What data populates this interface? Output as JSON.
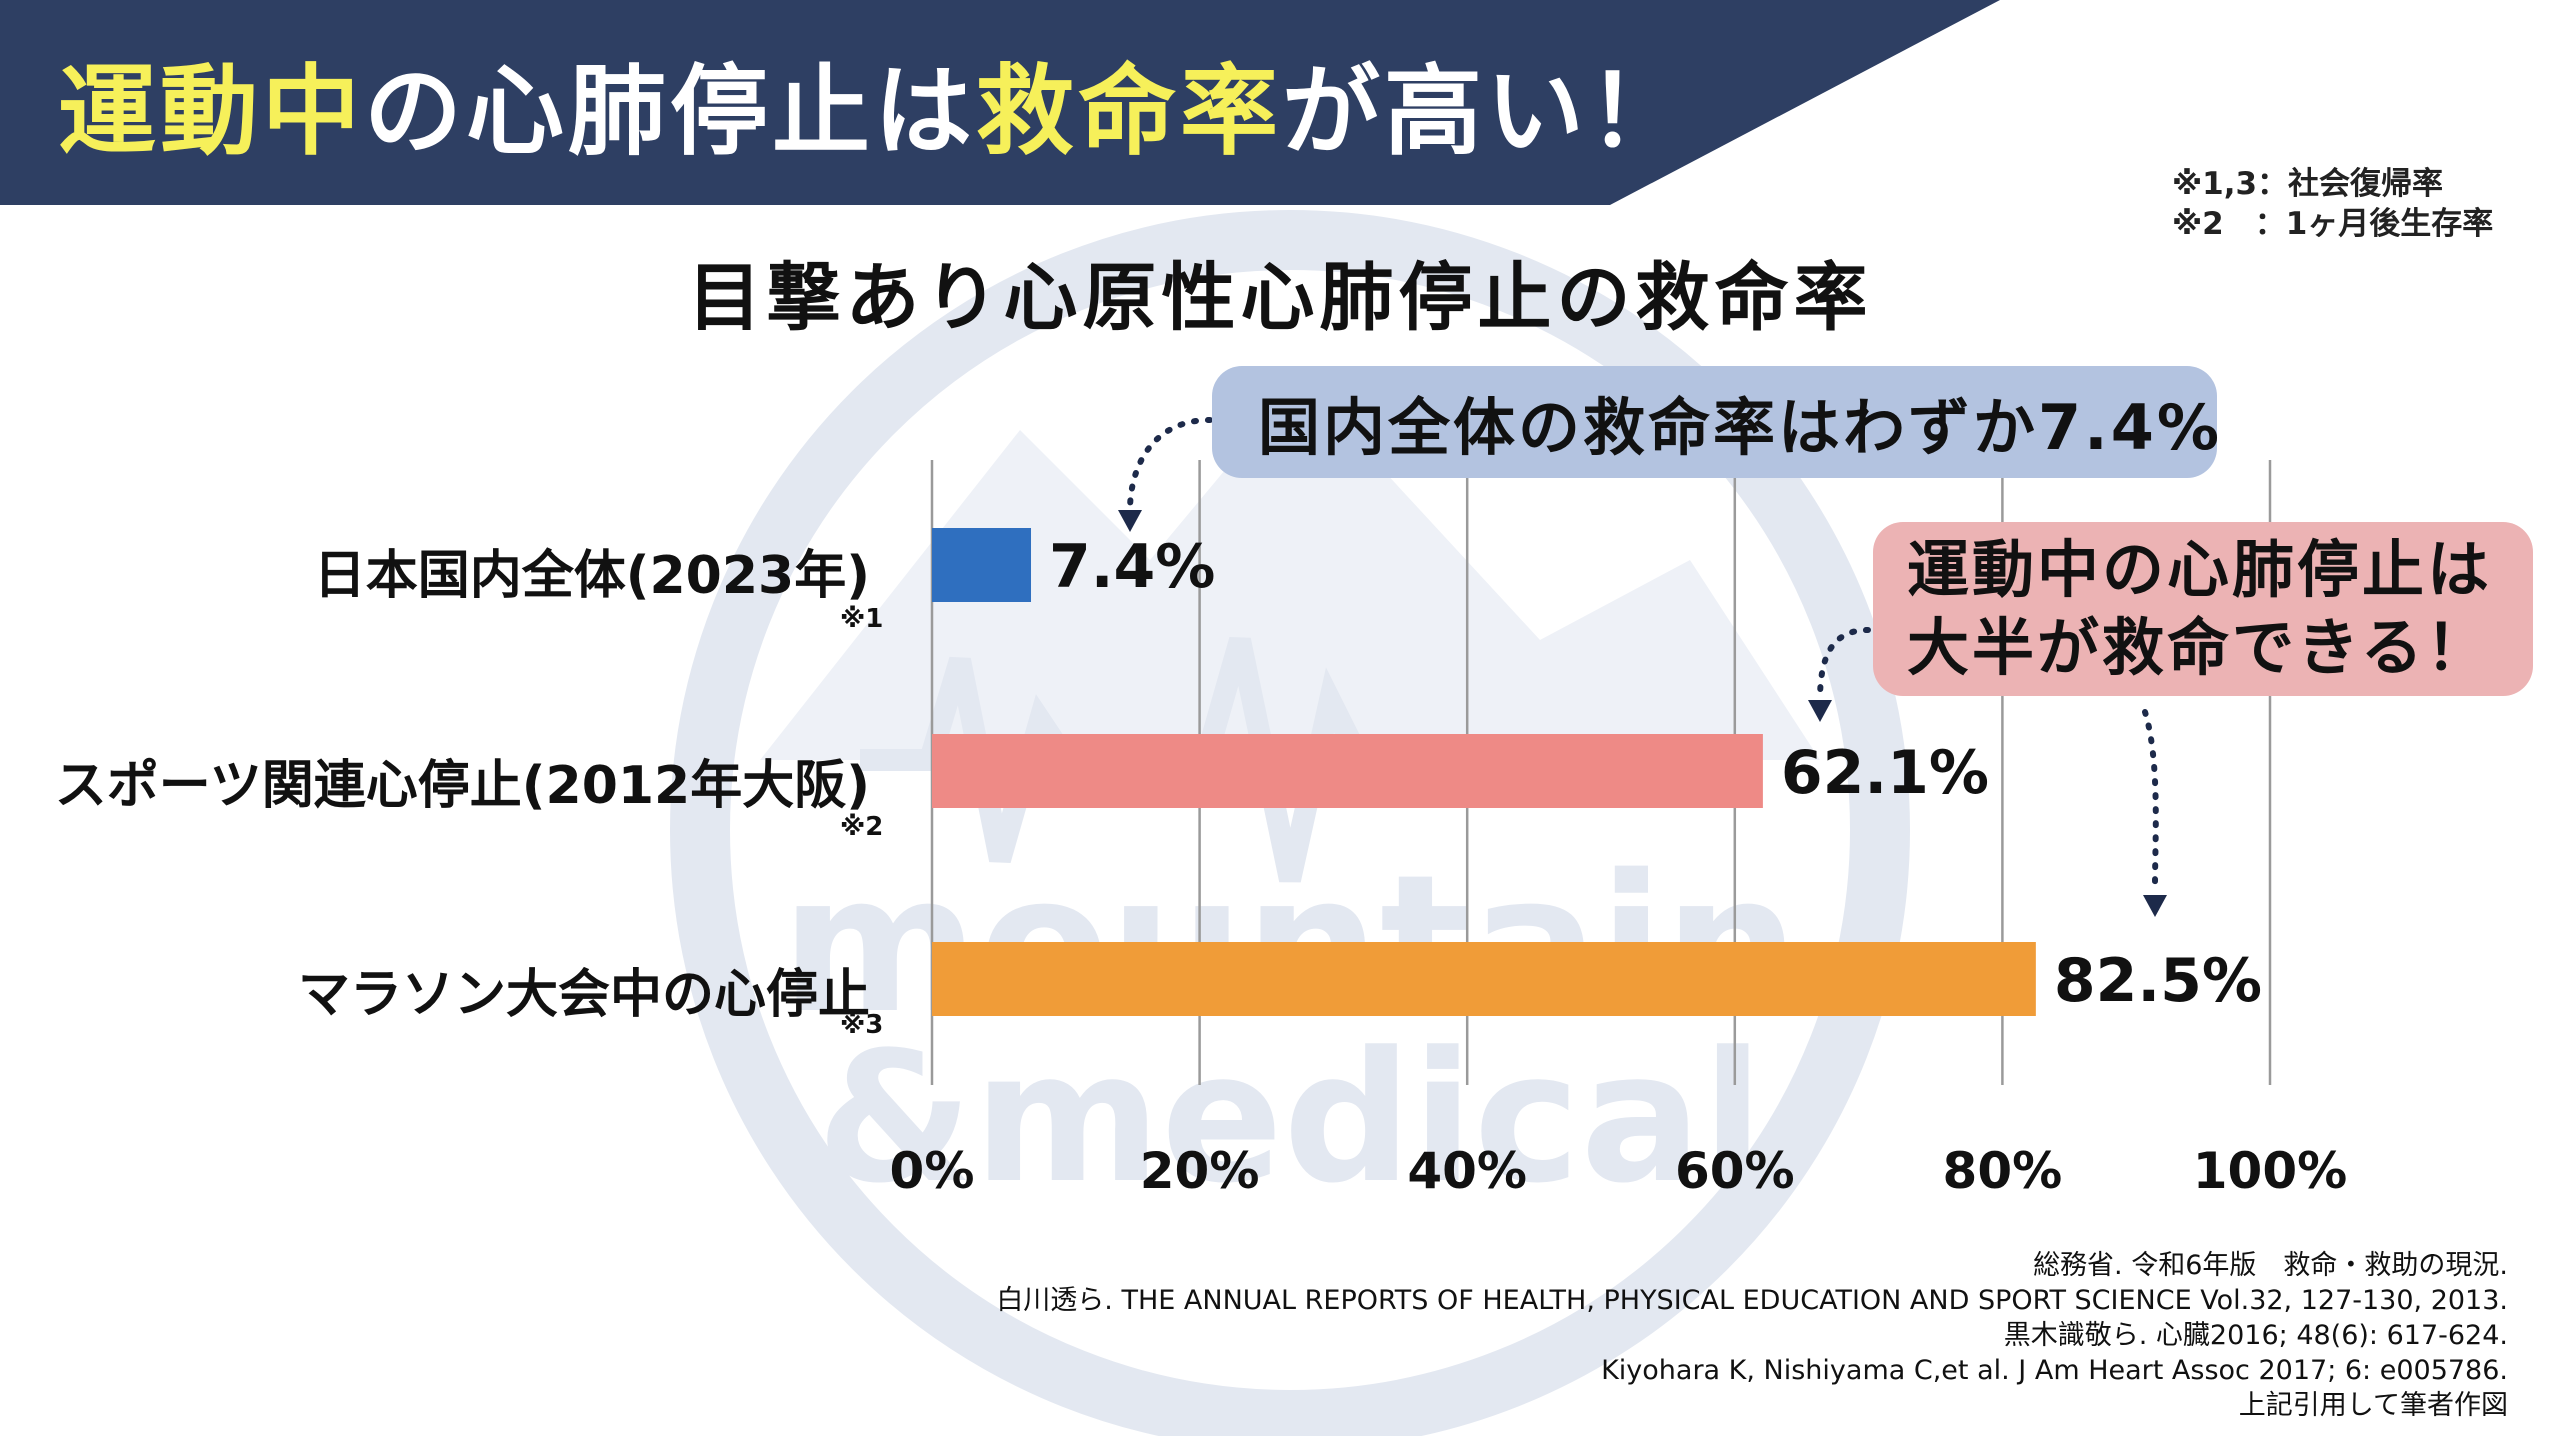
{
  "watermark": {
    "line1": "mountain",
    "line2": "&medical"
  },
  "header": {
    "title_part1": "運動中",
    "title_part2": "の心肺停止は",
    "title_part3": "救命率",
    "title_part4": "が高い！",
    "bg_color": "#2e3f63",
    "highlight_color": "#f6f05a"
  },
  "notes": {
    "line1": "※1,3：社会復帰率",
    "line2": "※2　：1ヶ月後生存率"
  },
  "chart_data": {
    "type": "bar",
    "orientation": "horizontal",
    "title": "目撃あり心原性心肺停止の救命率",
    "categories": [
      "日本国内全体(2023年)",
      "スポーツ関連心停止(2012年大阪)",
      "マラソン大会中の心停止"
    ],
    "category_notes": [
      "※1",
      "※2",
      "※3"
    ],
    "values": [
      7.4,
      62.1,
      82.5
    ],
    "value_labels": [
      "7.4%",
      "62.1%",
      "82.5%"
    ],
    "colors": [
      "#2f6fbf",
      "#ee8a86",
      "#f09c38"
    ],
    "xlim": [
      0,
      100
    ],
    "ticks": [
      0,
      20,
      40,
      60,
      80,
      100
    ],
    "tick_labels": [
      "0%",
      "20%",
      "40%",
      "60%",
      "80%",
      "100%"
    ],
    "grid": true
  },
  "callouts": {
    "blue": "国内全体の救命率はわずか7.4%",
    "red_line1": "運動中の心肺停止は",
    "red_line2": "大半が救命できる！"
  },
  "references": [
    "総務省. 令和6年版　救命・救助の現況.",
    "白川透ら. THE ANNUAL REPORTS OF HEALTH, PHYSICAL EDUCATION AND SPORT SCIENCE Vol.32, 127-130, 2013.",
    "黒木識敬ら. 心臓2016; 48(6): 617-624.",
    "Kiyohara K, Nishiyama C,et al. J Am Heart Assoc 2017; 6: e005786.",
    "上記引用して筆者作図"
  ]
}
